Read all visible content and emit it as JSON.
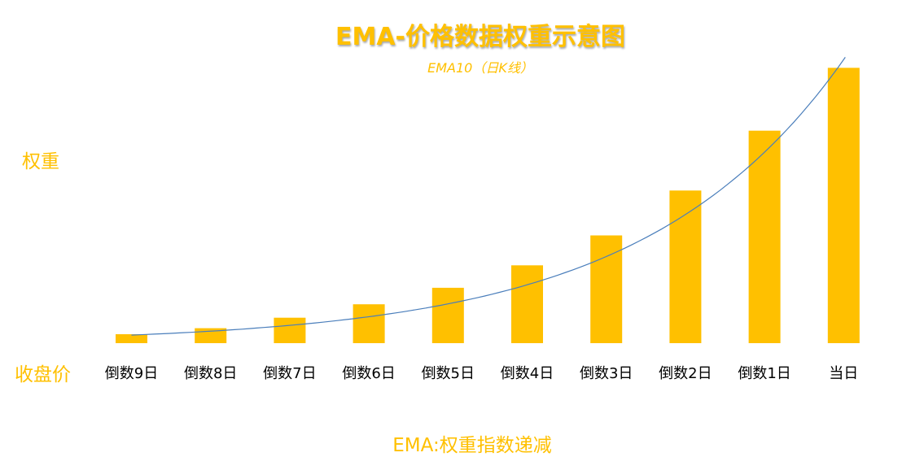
{
  "chart_data": {
    "type": "bar",
    "title": "EMA-价格数据权重示意图",
    "subtitle": "EMA10（日K线）",
    "ylabel": "权重",
    "row_label": "收盘价",
    "xlabel": "EMA:权重指数递减",
    "categories": [
      "倒数9日",
      "倒数8日",
      "倒数7日",
      "倒数6日",
      "倒数5日",
      "倒数4日",
      "倒数3日",
      "倒数2日",
      "倒数1日",
      "当日"
    ],
    "values": [
      3,
      5,
      8.5,
      13,
      18.5,
      26,
      36,
      51,
      71,
      92
    ],
    "trendline": {
      "type": "exponential",
      "color": "#4a7ebb"
    },
    "bar_color": "#ffc000",
    "text_color": "#ffc000",
    "ylim": [
      0,
      100
    ],
    "grid": false,
    "legend": "none"
  }
}
